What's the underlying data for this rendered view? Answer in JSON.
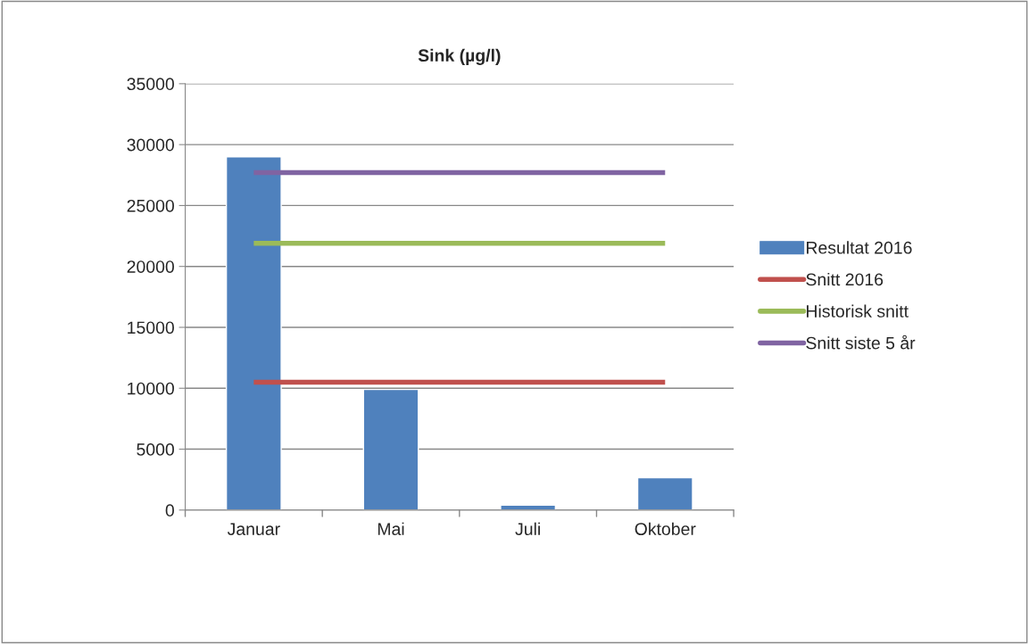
{
  "chart_data": {
    "type": "bar",
    "title": "Sink (µg/l)",
    "categories": [
      "Januar",
      "Mai",
      "Juli",
      "Oktober"
    ],
    "series": [
      {
        "name": "Resultat 2016",
        "color": "#4f81bd",
        "values": [
          29000,
          9900,
          400,
          2650
        ]
      },
      {
        "name": "Snitt 2016",
        "type": "line",
        "color": "#c0504d",
        "values": [
          10500,
          10500,
          10500,
          10500
        ]
      },
      {
        "name": "Historisk snitt",
        "type": "line",
        "color": "#9bbb59",
        "values": [
          21900,
          21900,
          21900,
          21900
        ]
      },
      {
        "name": "Snitt siste 5 år",
        "type": "line",
        "color": "#8064a2",
        "values": [
          27700,
          27700,
          27700,
          27700
        ]
      }
    ],
    "ylim": [
      0,
      35000
    ],
    "yticks": [
      0,
      5000,
      10000,
      15000,
      20000,
      25000,
      30000,
      35000
    ],
    "grid": "y",
    "legend": "right",
    "marker": "none",
    "line_style": "solid"
  }
}
